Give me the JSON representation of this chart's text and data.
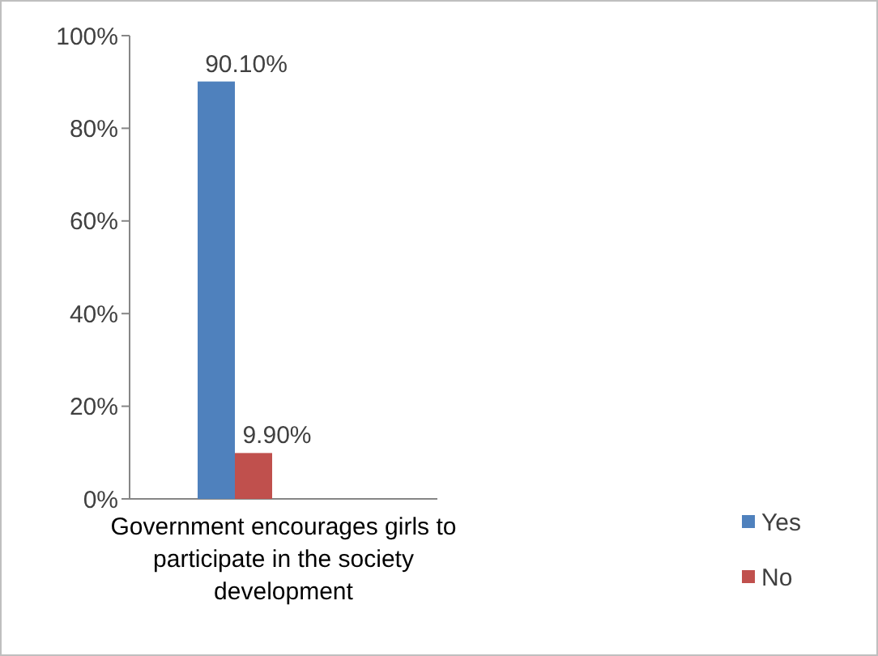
{
  "chart_data": {
    "type": "bar",
    "categories": [
      "Government encourages girls to participate in the society development"
    ],
    "series": [
      {
        "name": "Yes",
        "color": "#4f81bd",
        "values": [
          90.1
        ],
        "value_labels": [
          "90.10%"
        ]
      },
      {
        "name": "No",
        "color": "#c0504d",
        "values": [
          9.9
        ],
        "value_labels": [
          "9.90%"
        ]
      }
    ],
    "ylim": [
      0,
      100
    ],
    "yticks": [
      {
        "value": 0,
        "label": "0%"
      },
      {
        "value": 20,
        "label": "20%"
      },
      {
        "value": 40,
        "label": "40%"
      },
      {
        "value": 60,
        "label": "60%"
      },
      {
        "value": 80,
        "label": "80%"
      },
      {
        "value": 100,
        "label": "100%"
      }
    ],
    "grid": false,
    "legend": "bottom right"
  }
}
